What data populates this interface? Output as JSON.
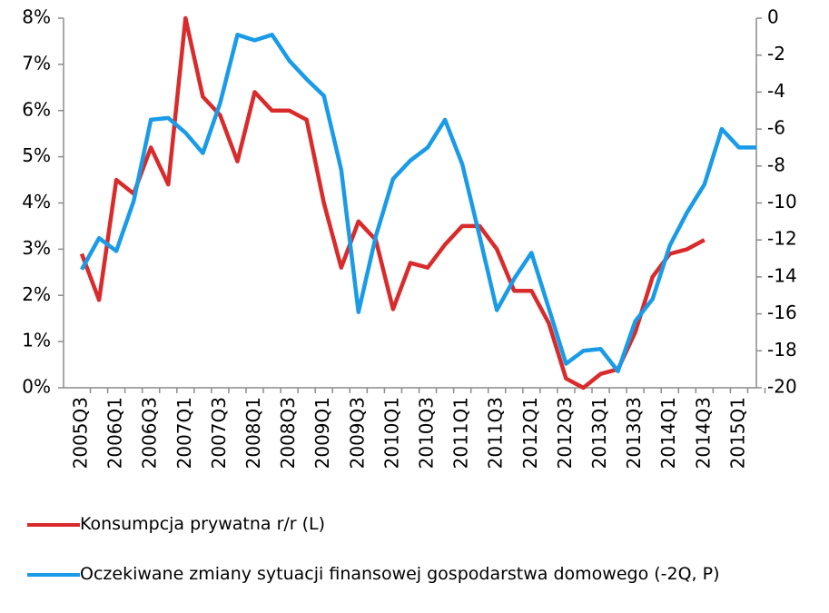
{
  "chart_data": {
    "type": "line",
    "categories": [
      "2005Q3",
      null,
      "2006Q1",
      null,
      "2006Q3",
      null,
      "2007Q1",
      null,
      "2007Q3",
      null,
      "2008Q1",
      null,
      "2008Q3",
      null,
      "2009Q1",
      null,
      "2009Q3",
      null,
      "2010Q1",
      null,
      "2010Q3",
      null,
      "2011Q1",
      null,
      "2011Q3",
      null,
      "2012Q1",
      null,
      "2012Q3",
      null,
      "2013Q1",
      null,
      "2013Q3",
      null,
      "2014Q1",
      null,
      "2014Q3",
      null,
      "2015Q1",
      null
    ],
    "series": [
      {
        "name": "Konsumpcja prywatna r/r (L)",
        "color": "#d92b2b",
        "values": [
          2.9,
          1.9,
          4.5,
          4.2,
          5.2,
          4.4,
          8.0,
          6.3,
          5.9,
          4.9,
          6.4,
          6.0,
          6.0,
          5.8,
          4.0,
          2.6,
          3.6,
          3.2,
          1.7,
          2.7,
          2.6,
          3.1,
          3.5,
          3.5,
          3.0,
          2.1,
          2.1,
          1.4,
          0.2,
          0.0,
          0.3,
          0.4,
          1.2,
          2.4,
          2.9,
          3.0,
          3.2,
          null,
          null,
          null
        ]
      },
      {
        "name": "Oczekiwane zmiany sytuacji finansowej gospodarstwa domowego (-2Q, P)",
        "color": "#1a9be8",
        "axis": "y2",
        "values": [
          -13.6,
          -11.9,
          -12.6,
          -9.9,
          -5.5,
          -5.4,
          -6.2,
          -7.3,
          -4.6,
          -0.9,
          -1.2,
          -0.9,
          -2.3,
          -3.3,
          -4.2,
          -8.2,
          -15.9,
          -11.8,
          -8.7,
          -7.7,
          -7.0,
          -5.5,
          -7.9,
          -11.8,
          -15.8,
          -14.1,
          -12.7,
          -15.7,
          -18.7,
          -18.0,
          -17.9,
          -19.1,
          -16.4,
          -15.2,
          -12.3,
          -10.5,
          -9.0,
          -6.0,
          -7.0,
          -7.0
        ]
      }
    ],
    "ylim": [
      0,
      8
    ],
    "yticks": [
      {
        "value": 0,
        "label": "0%"
      },
      {
        "value": 1,
        "label": "1%"
      },
      {
        "value": 2,
        "label": "2%"
      },
      {
        "value": 3,
        "label": "3%"
      },
      {
        "value": 4,
        "label": "4%"
      },
      {
        "value": 5,
        "label": "5%"
      },
      {
        "value": 6,
        "label": "6%"
      },
      {
        "value": 7,
        "label": "7%"
      },
      {
        "value": 8,
        "label": "8%"
      }
    ],
    "y2lim": [
      -20,
      0
    ],
    "y2ticks": [
      -20,
      -18,
      -16,
      -14,
      -12,
      -10,
      -8,
      -6,
      -4,
      -2,
      0
    ],
    "grid": false
  }
}
